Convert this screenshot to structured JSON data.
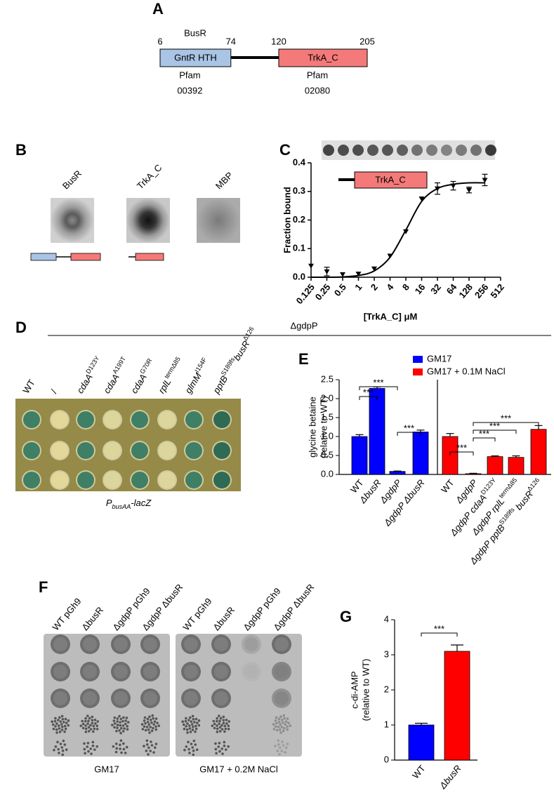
{
  "panel_a": {
    "label": "A",
    "title": "BusR",
    "domains": [
      {
        "name": "GntR HTH",
        "start": 6,
        "end": 74,
        "source": "Pfam",
        "accession": "00392",
        "color": "#a9c4e4"
      },
      {
        "name": "TrkA_C",
        "start": 120,
        "end": 205,
        "source": "Pfam",
        "accession": "02080",
        "color": "#f47a7a"
      }
    ]
  },
  "panel_b": {
    "label": "B",
    "proteins": [
      "BusR",
      "TrkA_C",
      "MBP"
    ]
  },
  "panel_d": {
    "label": "D",
    "group": "ΔgdpP",
    "columns": [
      [
        "WT"
      ],
      [
        "/"
      ],
      [
        "cdaA",
        "D123Y"
      ],
      [
        "cdaA",
        "A199T"
      ],
      [
        "cdaA",
        "G70R"
      ],
      [
        "rplL",
        "termΔ85"
      ],
      [
        "glmM",
        "I154F"
      ],
      [
        "pptB",
        "S189fs",
        "busR",
        "Δ126"
      ]
    ],
    "columns_italic": [
      false,
      false,
      true,
      true,
      true,
      true,
      true,
      true
    ],
    "colony_colors": [
      "#3f7f66",
      "#e4d79a",
      "#3f7f66",
      "#dcd69c",
      "#3f7f66",
      "#dcd69c",
      "#3f7f66",
      "#2f6a55"
    ],
    "reporter": {
      "main": "P",
      "sub": "busAA",
      "suffix": "-lacZ"
    }
  },
  "panel_f": {
    "label": "F",
    "plates": [
      {
        "media": "GM17",
        "strains": [
          "WT pGh9",
          "ΔbusR",
          "ΔgdpP pGh9",
          "ΔgdpP ΔbusR"
        ]
      },
      {
        "media": "GM17 + 0.2M NaCl",
        "strains": [
          "WT pGh9",
          "ΔbusR",
          "ΔgdpP pGh9",
          "ΔgdpP ΔbusR"
        ]
      }
    ]
  },
  "chart_data": [
    {
      "type": "scatter",
      "label": "C",
      "xlabel": "[TrkA_C] μM",
      "ylabel": "Fraction bound",
      "inset": "TrkA_C",
      "xscale": "log2",
      "x": [
        0.125,
        0.25,
        0.5,
        1,
        2,
        4,
        8,
        16,
        32,
        64,
        128,
        256
      ],
      "xlim": [
        0.125,
        512
      ],
      "xticks": [
        0.125,
        0.25,
        0.5,
        1,
        2,
        4,
        8,
        16,
        32,
        64,
        128,
        256,
        512
      ],
      "ylim": [
        0,
        0.4
      ],
      "yticks": [
        {
          "value": 0,
          "label": "0.0"
        },
        0.1,
        0.2,
        0.3,
        0.4
      ],
      "series": [
        {
          "color": "#000000",
          "values": [
            0.04,
            0.02,
            0.01,
            0.012,
            0.03,
            0.075,
            0.16,
            0.275,
            0.31,
            0.32,
            0.305,
            0.34
          ],
          "errors": [
            0,
            0.015,
            0,
            0,
            0,
            0,
            0,
            0,
            0.02,
            0.015,
            0.01,
            0.02
          ]
        },
        {
          "color": "#000000",
          "values": [
            0,
            0,
            0.001,
            0.006,
            0.022,
            0.07,
            0.165,
            0.265,
            0.31,
            0.325,
            0.33,
            0.33
          ]
        }
      ]
    },
    {
      "type": "bar",
      "label": "E",
      "ylabel": "glycine betaine",
      "ylabel2": "(relative to WT)",
      "categories": [
        [
          "WT"
        ],
        [
          "ΔbusR"
        ],
        [
          "ΔgdpP"
        ],
        [
          "ΔgdpP ΔbusR"
        ],
        [
          "WT"
        ],
        [
          "ΔgdpP"
        ],
        [
          "ΔgdpP cdaA",
          "D123Y"
        ],
        [
          "ΔgdpP rplL",
          "termΔ85"
        ],
        [
          "ΔgdpP pptB",
          "S189fs",
          " busR",
          "Δ126"
        ]
      ],
      "categories_italic": [
        false,
        true,
        true,
        true,
        false,
        true,
        true,
        true,
        true
      ],
      "ylim": [
        0,
        2.5
      ],
      "yticks": [
        {
          "value": 0,
          "label": "0.0"
        },
        0.5,
        {
          "value": 1,
          "label": "1.0"
        },
        1.5,
        {
          "value": 2,
          "label": "2.0"
        },
        2.5
      ],
      "series": [
        {
          "name": "GM17",
          "color": "#0000ff",
          "values": [
            1.0,
            2.27,
            0.08,
            1.12,
            null,
            null,
            null,
            null,
            null
          ],
          "errors": [
            0.05,
            0.04,
            0.01,
            0.05,
            null,
            null,
            null,
            null,
            null
          ]
        },
        {
          "name": "GM17 + 0.1M NaCl",
          "color": "#ff0000",
          "values": [
            null,
            null,
            null,
            null,
            1.0,
            0.02,
            0.47,
            0.45,
            1.19
          ],
          "errors": [
            null,
            null,
            null,
            null,
            0.08,
            0.01,
            0.02,
            0.04,
            0.1
          ]
        }
      ],
      "significance": [
        {
          "pair": [
            0,
            1
          ],
          "label": "***"
        },
        {
          "pair": [
            0,
            2
          ],
          "label": "***"
        },
        {
          "pair": [
            2,
            3
          ],
          "label": "***"
        },
        {
          "pair": [
            4,
            5
          ],
          "label": "***"
        },
        {
          "pair": [
            5,
            6
          ],
          "label": "***"
        },
        {
          "pair": [
            5,
            7
          ],
          "label": "***"
        },
        {
          "pair": [
            5,
            8
          ],
          "label": "***"
        }
      ]
    },
    {
      "type": "bar",
      "label": "G",
      "ylabel": "c-di-AMP",
      "ylabel2": "(relative to WT)",
      "categories": [
        [
          "WT"
        ],
        [
          "ΔbusR"
        ]
      ],
      "categories_italic": [
        false,
        true
      ],
      "ylim": [
        0,
        4
      ],
      "yticks": [
        0,
        1,
        2,
        3,
        4
      ],
      "series": [
        {
          "colors": [
            "#0000ff",
            "#ff0000"
          ],
          "values": [
            1.0,
            3.1
          ],
          "errors": [
            0.05,
            0.18
          ]
        }
      ],
      "significance": [
        {
          "pair": [
            0,
            1
          ],
          "label": "***"
        }
      ]
    }
  ]
}
